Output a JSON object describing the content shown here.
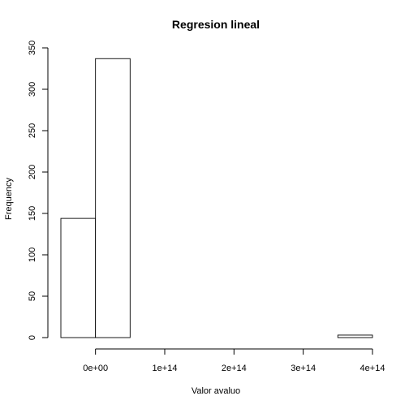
{
  "chart_data": {
    "type": "bar",
    "title": "Regresion lineal",
    "xlabel": "Valor avaluo",
    "ylabel": "Frequency",
    "bins": [
      {
        "from": -50000000000000.0,
        "to": 0,
        "count": 144
      },
      {
        "from": 0,
        "to": 50000000000000.0,
        "count": 337
      },
      {
        "from": 50000000000000.0,
        "to": 100000000000000.0,
        "count": 0
      },
      {
        "from": 100000000000000.0,
        "to": 150000000000000.0,
        "count": 0
      },
      {
        "from": 150000000000000.0,
        "to": 200000000000000.0,
        "count": 0
      },
      {
        "from": 200000000000000.0,
        "to": 250000000000000.0,
        "count": 0
      },
      {
        "from": 250000000000000.0,
        "to": 300000000000000.0,
        "count": 0
      },
      {
        "from": 300000000000000.0,
        "to": 350000000000000.0,
        "count": 0
      },
      {
        "from": 350000000000000.0,
        "to": 400000000000000.0,
        "count": 3
      }
    ],
    "xlim": [
      -50000000000000.0,
      400000000000000.0
    ],
    "ylim": [
      0,
      350
    ],
    "xticks": [
      {
        "value": 0,
        "label": "0e+00"
      },
      {
        "value": 100000000000000.0,
        "label": "1e+14"
      },
      {
        "value": 200000000000000.0,
        "label": "2e+14"
      },
      {
        "value": 300000000000000.0,
        "label": "3e+14"
      },
      {
        "value": 400000000000000.0,
        "label": "4e+14"
      }
    ],
    "yticks": [
      {
        "value": 0,
        "label": "0"
      },
      {
        "value": 50,
        "label": "50"
      },
      {
        "value": 100,
        "label": "100"
      },
      {
        "value": 150,
        "label": "150"
      },
      {
        "value": 200,
        "label": "200"
      },
      {
        "value": 250,
        "label": "250"
      },
      {
        "value": 300,
        "label": "300"
      },
      {
        "value": 350,
        "label": "350"
      }
    ],
    "grid": false,
    "colors": {
      "bar_fill": "#ffffff",
      "bar_stroke": "#000000"
    }
  }
}
